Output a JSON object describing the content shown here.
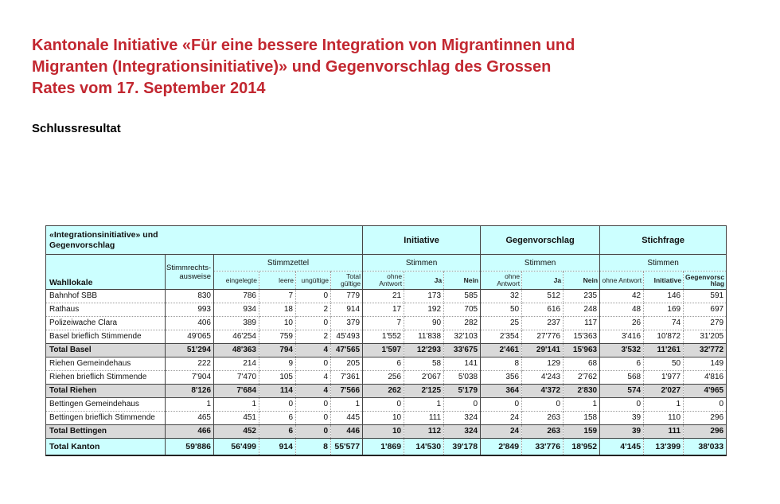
{
  "document": {
    "title_lines": [
      "Kantonale Initiative «Für eine bessere Integration von Migrantinnen und",
      "Migranten (Integrationsinitiative)» und Gegenvorschlag des Grossen",
      "Rates vom 17. September 2014"
    ],
    "subtitle": "Schlussresultat"
  },
  "colors": {
    "title": "#c22730",
    "header_bg": "#ccffff",
    "total_row_bg": "#d9d9d9",
    "kanton_row_bg": "#ccffff"
  },
  "table": {
    "corner_lines": [
      "«Integrationsinitiative» und",
      "Gegenvorschlag"
    ],
    "wahllokale_header": "Wahllokale",
    "stimmrechts_lines": [
      "Stimmrechts-",
      "ausweise"
    ],
    "stimmzettel": {
      "label": "Stimmzettel",
      "columns": [
        "eingelegte",
        "leere",
        "ungültige",
        "Total gültige"
      ]
    },
    "groups": [
      {
        "label": "Initiative",
        "sub_label": "Stimmen",
        "columns": [
          "ohne Antwort",
          "Ja",
          "Nein"
        ]
      },
      {
        "label": "Gegenvorschlag",
        "sub_label": "Stimmen",
        "columns": [
          "ohne Antwort",
          "Ja",
          "Nein"
        ]
      },
      {
        "label": "Stichfrage",
        "sub_label": "Stimmen",
        "columns": [
          "ohne Antwort",
          "Initiative",
          "Gegenvorschlag"
        ]
      }
    ],
    "rows": [
      {
        "label": "Bahnhof SBB",
        "type": "data",
        "values": [
          "830",
          "786",
          "7",
          "0",
          "779",
          "21",
          "173",
          "585",
          "32",
          "512",
          "235",
          "42",
          "146",
          "591"
        ]
      },
      {
        "label": "Rathaus",
        "type": "data",
        "values": [
          "993",
          "934",
          "18",
          "2",
          "914",
          "17",
          "192",
          "705",
          "50",
          "616",
          "248",
          "48",
          "169",
          "697"
        ]
      },
      {
        "label": "Polizeiwache Clara",
        "type": "data",
        "values": [
          "406",
          "389",
          "10",
          "0",
          "379",
          "7",
          "90",
          "282",
          "25",
          "237",
          "117",
          "26",
          "74",
          "279"
        ]
      },
      {
        "label": "Basel brieflich Stimmende",
        "type": "data",
        "values": [
          "49'065",
          "46'254",
          "759",
          "2",
          "45'493",
          "1'552",
          "11'838",
          "32'103",
          "2'354",
          "27'776",
          "15'363",
          "3'416",
          "10'872",
          "31'205"
        ]
      },
      {
        "label": "Total Basel",
        "type": "total",
        "values": [
          "51'294",
          "48'363",
          "794",
          "4",
          "47'565",
          "1'597",
          "12'293",
          "33'675",
          "2'461",
          "29'141",
          "15'963",
          "3'532",
          "11'261",
          "32'772"
        ]
      },
      {
        "label": "Riehen Gemeindehaus",
        "type": "data",
        "values": [
          "222",
          "214",
          "9",
          "0",
          "205",
          "6",
          "58",
          "141",
          "8",
          "129",
          "68",
          "6",
          "50",
          "149"
        ]
      },
      {
        "label": "Riehen brieflich Stimmende",
        "type": "data",
        "values": [
          "7'904",
          "7'470",
          "105",
          "4",
          "7'361",
          "256",
          "2'067",
          "5'038",
          "356",
          "4'243",
          "2'762",
          "568",
          "1'977",
          "4'816"
        ]
      },
      {
        "label": "Total Riehen",
        "type": "total",
        "values": [
          "8'126",
          "7'684",
          "114",
          "4",
          "7'566",
          "262",
          "2'125",
          "5'179",
          "364",
          "4'372",
          "2'830",
          "574",
          "2'027",
          "4'965"
        ]
      },
      {
        "label": "Bettingen Gemeindehaus",
        "type": "data",
        "values": [
          "1",
          "1",
          "0",
          "0",
          "1",
          "0",
          "1",
          "0",
          "0",
          "0",
          "1",
          "0",
          "1",
          "0"
        ]
      },
      {
        "label": "Bettingen brieflich Stimmende",
        "type": "data",
        "values": [
          "465",
          "451",
          "6",
          "0",
          "445",
          "10",
          "111",
          "324",
          "24",
          "263",
          "158",
          "39",
          "110",
          "296"
        ]
      },
      {
        "label": "Total Bettingen",
        "type": "total",
        "values": [
          "466",
          "452",
          "6",
          "0",
          "446",
          "10",
          "112",
          "324",
          "24",
          "263",
          "159",
          "39",
          "111",
          "296"
        ]
      },
      {
        "label": "Total Kanton",
        "type": "grand",
        "values": [
          "59'886",
          "56'499",
          "914",
          "8",
          "55'577",
          "1'869",
          "14'530",
          "39'178",
          "2'849",
          "33'776",
          "18'952",
          "4'145",
          "13'399",
          "38'033"
        ]
      }
    ]
  }
}
